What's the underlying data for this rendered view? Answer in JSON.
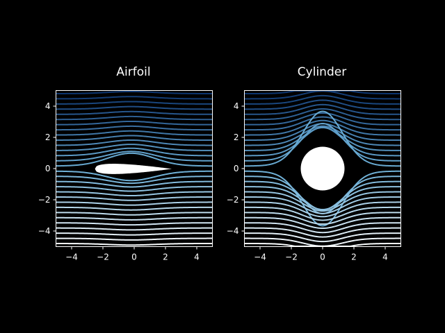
{
  "colors": {
    "background": "#000000",
    "foreground": "#ffffff",
    "stream_dark": "#08306b",
    "stream_mid": "#6baed6",
    "stream_light": "#ffffff"
  },
  "chart_data": [
    {
      "type": "streamplot",
      "title": "Airfoil",
      "obstacle": "airfoil",
      "xlim": [
        -5,
        5
      ],
      "ylim": [
        -5,
        5
      ],
      "xticks": [
        -4,
        -2,
        0,
        2,
        4
      ],
      "yticks": [
        -4,
        -2,
        0,
        2,
        4
      ],
      "xtick_labels": [
        "−4",
        "−2",
        "0",
        "2",
        "4"
      ],
      "ytick_labels": [
        "−4",
        "−2",
        "0",
        "2",
        "4"
      ],
      "obstacle_extent": {
        "x": [
          -2.5,
          2.4
        ],
        "y": [
          -0.55,
          0.5
        ]
      },
      "colormap": "Blues (colored by y)",
      "grid": false
    },
    {
      "type": "streamplot",
      "title": "Cylinder",
      "obstacle": "cylinder",
      "xlim": [
        -5,
        5
      ],
      "ylim": [
        -5,
        5
      ],
      "xticks": [
        -4,
        -2,
        0,
        2,
        4
      ],
      "yticks": [
        -4,
        -2,
        0,
        2,
        4
      ],
      "xtick_labels": [
        "−4",
        "−2",
        "0",
        "2",
        "4"
      ],
      "ytick_labels": [
        "−4",
        "−2",
        "0",
        "2",
        "4"
      ],
      "obstacle_center": [
        0,
        0
      ],
      "obstacle_radius": 1.4,
      "colormap": "Blues (colored by y)",
      "grid": false
    }
  ]
}
